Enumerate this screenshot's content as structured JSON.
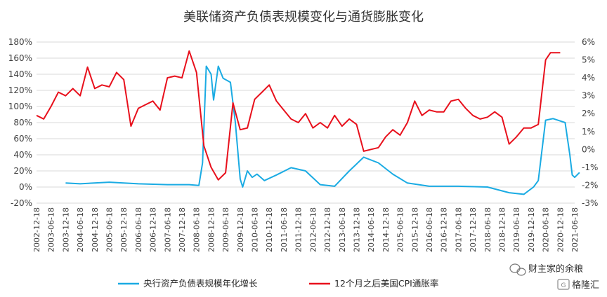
{
  "chart_data": {
    "type": "line",
    "title": "美联储资产负债表规模变化与通货膨胀变化",
    "left_axis": {
      "ticks": [
        -20,
        0,
        20,
        40,
        60,
        80,
        100,
        120,
        140,
        160,
        180
      ],
      "tick_labels": [
        "-20%",
        "0%",
        "20%",
        "40%",
        "60%",
        "80%",
        "100%",
        "120%",
        "140%",
        "160%",
        "180%"
      ],
      "range": [
        -20,
        180
      ]
    },
    "right_axis": {
      "ticks": [
        -3,
        -2,
        -1,
        0,
        1,
        2,
        3,
        4,
        5,
        6
      ],
      "tick_labels": [
        "-3%",
        "-2%",
        "-1%",
        "0%",
        "1%",
        "2%",
        "3%",
        "4%",
        "5%",
        "6%"
      ],
      "range": [
        -3,
        6
      ]
    },
    "x_axis": {
      "start_label": "2002-12-18",
      "end_label": "2021-06-18",
      "tick_labels": [
        "2002-12-18",
        "2003-06-18",
        "2003-12-18",
        "2004-06-18",
        "2004-12-18",
        "2005-06-18",
        "2005-12-18",
        "2006-06-18",
        "2006-12-18",
        "2007-06-18",
        "2007-12-18",
        "2008-06-18",
        "2008-12-18",
        "2009-06-18",
        "2009-12-18",
        "2010-06-18",
        "2010-12-18",
        "2011-06-18",
        "2011-12-18",
        "2012-06-18",
        "2012-12-18",
        "2013-06-18",
        "2013-12-18",
        "2014-06-18",
        "2014-12-18",
        "2015-06-18",
        "2015-12-18",
        "2016-06-18",
        "2016-12-18",
        "2017-06-18",
        "2017-12-18",
        "2018-06-18",
        "2018-12-18",
        "2019-06-18",
        "2019-12-18",
        "2020-06-18",
        "2020-12-18",
        "2021-06-18"
      ]
    },
    "grid": "horizontal",
    "legend": "bottom",
    "series": [
      {
        "name": "央行资产负债表规模年化增长",
        "axis": "left",
        "color": "#1AABE3",
        "points": [
          [
            "2003-12-18",
            5
          ],
          [
            "2004-06-18",
            4
          ],
          [
            "2005-06-18",
            6
          ],
          [
            "2006-06-18",
            4
          ],
          [
            "2007-06-18",
            3
          ],
          [
            "2008-03-18",
            3
          ],
          [
            "2008-07-18",
            2
          ],
          [
            "2008-09-01",
            30
          ],
          [
            "2008-10-18",
            150
          ],
          [
            "2008-12-18",
            140
          ],
          [
            "2009-01-18",
            108
          ],
          [
            "2009-03-18",
            150
          ],
          [
            "2009-05-18",
            135
          ],
          [
            "2009-08-18",
            130
          ],
          [
            "2009-10-18",
            80
          ],
          [
            "2009-12-18",
            10
          ],
          [
            "2010-01-18",
            0
          ],
          [
            "2010-03-18",
            20
          ],
          [
            "2010-05-18",
            12
          ],
          [
            "2010-07-18",
            16
          ],
          [
            "2010-10-18",
            8
          ],
          [
            "2011-03-18",
            15
          ],
          [
            "2011-09-18",
            24
          ],
          [
            "2012-03-18",
            20
          ],
          [
            "2012-09-18",
            3
          ],
          [
            "2013-03-18",
            1
          ],
          [
            "2013-09-18",
            20
          ],
          [
            "2014-03-18",
            37
          ],
          [
            "2014-09-18",
            30
          ],
          [
            "2015-03-18",
            16
          ],
          [
            "2015-09-18",
            5
          ],
          [
            "2016-06-18",
            1
          ],
          [
            "2017-06-18",
            1
          ],
          [
            "2018-06-18",
            0
          ],
          [
            "2019-03-18",
            -7
          ],
          [
            "2019-09-18",
            -9
          ],
          [
            "2020-01-18",
            0
          ],
          [
            "2020-03-18",
            8
          ],
          [
            "2020-06-18",
            83
          ],
          [
            "2020-09-18",
            85
          ],
          [
            "2020-12-18",
            82
          ],
          [
            "2021-02-18",
            80
          ],
          [
            "2021-04-18",
            40
          ],
          [
            "2021-05-18",
            15
          ],
          [
            "2021-06-18",
            12
          ],
          [
            "2021-08-18",
            18
          ]
        ]
      },
      {
        "name": "12个月之后美国CPI通胀率",
        "axis": "right",
        "color": "#E8101C",
        "points": [
          [
            "2002-12-18",
            1.9
          ],
          [
            "2003-03-18",
            1.7
          ],
          [
            "2003-06-18",
            2.4
          ],
          [
            "2003-09-18",
            3.2
          ],
          [
            "2003-12-18",
            3.0
          ],
          [
            "2004-03-18",
            3.4
          ],
          [
            "2004-06-18",
            3.0
          ],
          [
            "2004-09-18",
            4.6
          ],
          [
            "2004-12-18",
            3.4
          ],
          [
            "2005-03-18",
            3.6
          ],
          [
            "2005-06-18",
            3.5
          ],
          [
            "2005-09-18",
            4.3
          ],
          [
            "2005-12-18",
            3.9
          ],
          [
            "2006-03-18",
            1.3
          ],
          [
            "2006-06-18",
            2.3
          ],
          [
            "2006-09-18",
            2.5
          ],
          [
            "2006-12-18",
            2.7
          ],
          [
            "2007-03-18",
            2.2
          ],
          [
            "2007-06-18",
            4.0
          ],
          [
            "2007-09-18",
            4.1
          ],
          [
            "2007-12-18",
            4.0
          ],
          [
            "2008-03-18",
            5.5
          ],
          [
            "2008-06-18",
            4.3
          ],
          [
            "2008-09-18",
            0.2
          ],
          [
            "2008-12-18",
            -1.0
          ],
          [
            "2009-03-18",
            -1.7
          ],
          [
            "2009-06-18",
            -1.3
          ],
          [
            "2009-09-18",
            2.6
          ],
          [
            "2009-12-18",
            1.1
          ],
          [
            "2010-03-18",
            1.2
          ],
          [
            "2010-06-18",
            2.8
          ],
          [
            "2010-09-18",
            3.2
          ],
          [
            "2010-12-18",
            3.6
          ],
          [
            "2011-03-18",
            2.7
          ],
          [
            "2011-06-18",
            2.2
          ],
          [
            "2011-09-18",
            1.7
          ],
          [
            "2011-12-18",
            1.5
          ],
          [
            "2012-03-18",
            2.0
          ],
          [
            "2012-06-18",
            1.2
          ],
          [
            "2012-09-18",
            1.5
          ],
          [
            "2012-12-18",
            1.2
          ],
          [
            "2013-03-18",
            1.9
          ],
          [
            "2013-06-18",
            1.3
          ],
          [
            "2013-09-18",
            1.7
          ],
          [
            "2013-12-18",
            1.4
          ],
          [
            "2014-03-18",
            -0.1
          ],
          [
            "2014-06-18",
            0.0
          ],
          [
            "2014-09-18",
            0.1
          ],
          [
            "2014-12-18",
            0.7
          ],
          [
            "2015-03-18",
            1.1
          ],
          [
            "2015-06-18",
            0.8
          ],
          [
            "2015-09-18",
            1.5
          ],
          [
            "2015-12-18",
            2.7
          ],
          [
            "2016-03-18",
            1.9
          ],
          [
            "2016-06-18",
            2.2
          ],
          [
            "2016-09-18",
            2.1
          ],
          [
            "2016-12-18",
            2.1
          ],
          [
            "2017-03-18",
            2.7
          ],
          [
            "2017-06-18",
            2.8
          ],
          [
            "2017-09-18",
            2.3
          ],
          [
            "2017-12-18",
            1.9
          ],
          [
            "2018-03-18",
            1.7
          ],
          [
            "2018-06-18",
            1.8
          ],
          [
            "2018-09-18",
            2.1
          ],
          [
            "2018-12-18",
            1.8
          ],
          [
            "2019-03-18",
            0.3
          ],
          [
            "2019-06-18",
            0.7
          ],
          [
            "2019-09-18",
            1.2
          ],
          [
            "2019-12-18",
            1.2
          ],
          [
            "2020-03-18",
            1.4
          ],
          [
            "2020-06-18",
            5.0
          ],
          [
            "2020-08-18",
            5.4
          ],
          [
            "2020-12-18",
            5.4
          ]
        ]
      }
    ]
  },
  "watermark": {
    "account": "财主家的余粮",
    "brand": "格隆汇"
  }
}
